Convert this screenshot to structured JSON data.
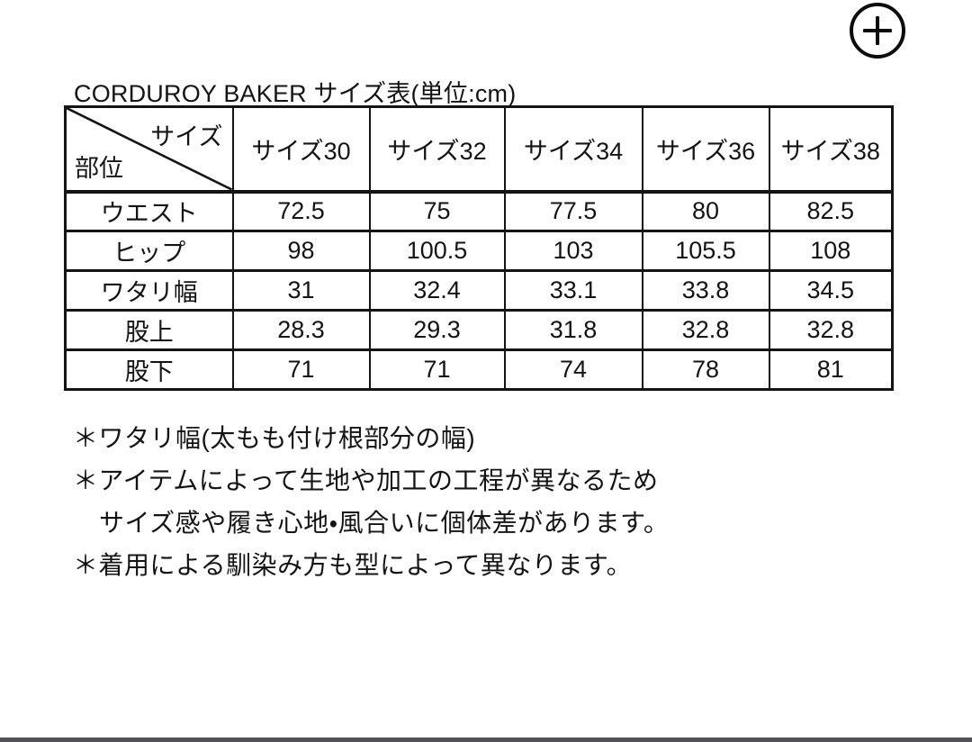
{
  "title": "CORDUROY BAKER サイズ表(単位:cm)",
  "viewer": {
    "zoom_in_icon": "plus-circle-icon"
  },
  "table": {
    "corner": {
      "top_label": "サイズ",
      "bottom_label": "部位"
    },
    "columns": [
      "サイズ30",
      "サイズ32",
      "サイズ34",
      "サイズ36",
      "サイズ38"
    ],
    "rows": [
      {
        "label": "ウエスト",
        "values": [
          "72.5",
          "75",
          "77.5",
          "80",
          "82.5"
        ]
      },
      {
        "label": "ヒップ",
        "values": [
          "98",
          "100.5",
          "103",
          "105.5",
          "108"
        ]
      },
      {
        "label": "ワタリ幅",
        "values": [
          "31",
          "32.4",
          "33.1",
          "33.8",
          "34.5"
        ]
      },
      {
        "label": "股上",
        "values": [
          "28.3",
          "29.3",
          "31.8",
          "32.8",
          "32.8"
        ]
      },
      {
        "label": "股下",
        "values": [
          "71",
          "71",
          "74",
          "78",
          "81"
        ]
      }
    ]
  },
  "footnotes": [
    "＊ワタリ幅(太もも付け根部分の幅)",
    "＊アイテムによって生地や加工の工程が異なるため",
    "サイズ感や履き心地・風合いに個体差があります。",
    "＊着用による馴染み方も型によって異なります。"
  ],
  "colors": {
    "text": "#141414",
    "table_border": "#141414",
    "bottom_bar": "#515257",
    "background": "#ffffff"
  }
}
